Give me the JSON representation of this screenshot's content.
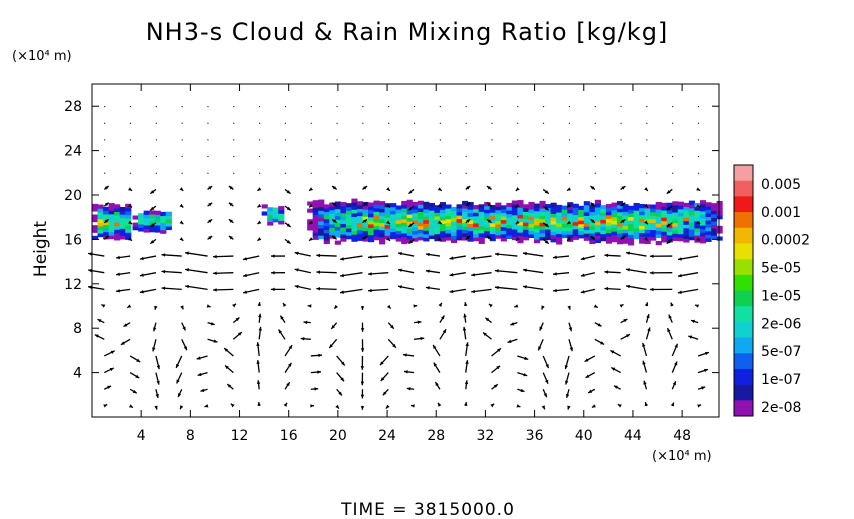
{
  "chart_data": {
    "type": "heatmap",
    "title": "NH3-s Cloud & Rain Mixing Ratio [kg/kg]",
    "ylabel": "Height",
    "y_unit": "(×10⁴ m)",
    "x_unit": "(×10⁴ m)",
    "xlim": [
      0,
      51
    ],
    "ylim": [
      0,
      30
    ],
    "x_ticks": [
      4,
      8,
      12,
      16,
      20,
      24,
      28,
      32,
      36,
      40,
      44,
      48
    ],
    "x_tick_labels": [
      "4",
      "8",
      "12",
      "16",
      "20",
      "24",
      "28",
      "32",
      "36",
      "40",
      "44",
      "48"
    ],
    "y_ticks": [
      4,
      8,
      12,
      16,
      20,
      24,
      28
    ],
    "y_tick_labels": [
      "4",
      "8",
      "12",
      "16",
      "20",
      "24",
      "28"
    ],
    "colorbar": {
      "labels": [
        "0.005",
        "0.001",
        "0.0002",
        "5e-05",
        "1e-05",
        "2e-06",
        "5e-07",
        "1e-07",
        "2e-08"
      ],
      "colors": [
        "#f4a0a0",
        "#f06060",
        "#f01818",
        "#f07000",
        "#f0b800",
        "#e8e000",
        "#98e000",
        "#30e000",
        "#10d050",
        "#10e0a0",
        "#10d0d0",
        "#10a8f0",
        "#1060f0",
        "#1020e0",
        "#1818a0",
        "#9010b0"
      ]
    },
    "cloud_layer": {
      "description_level_min": 2e-08,
      "height_range": [
        15.5,
        19.5
      ],
      "segments": [
        {
          "x": [
            0,
            3
          ],
          "y": [
            15.8,
            19.0
          ],
          "peak": "0.001"
        },
        {
          "x": [
            3.3,
            6.2
          ],
          "y": [
            16.5,
            18.5
          ],
          "peak": "2e-06"
        },
        {
          "x": [
            13.8,
            15.3
          ],
          "y": [
            17.3,
            18.9
          ],
          "peak": "1e-07"
        },
        {
          "x": [
            17.5,
            51
          ],
          "y": [
            15.6,
            19.3
          ],
          "peak": "0.001"
        }
      ]
    },
    "vector_field": true
  },
  "footer": {
    "time_label": "TIME = 3815000.0"
  }
}
